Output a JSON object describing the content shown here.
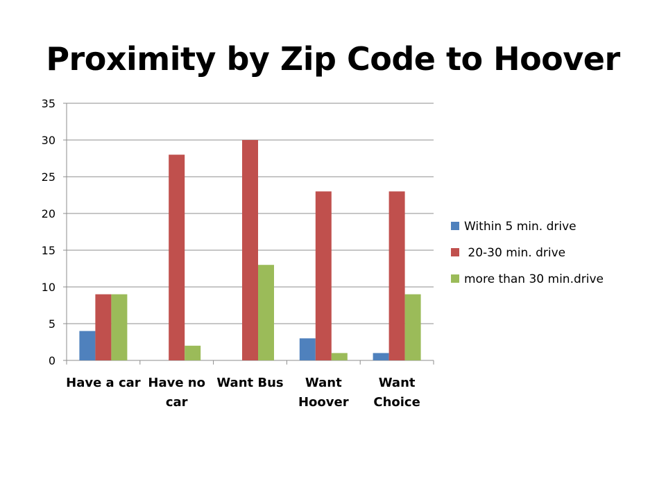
{
  "chart_data": {
    "type": "bar",
    "title": "Proximity by Zip Code to Hoover",
    "categories": [
      [
        "Have a car"
      ],
      [
        "Have no",
        "car"
      ],
      [
        "Want Bus"
      ],
      [
        "Want",
        "Hoover"
      ],
      [
        "Want",
        "Choice"
      ]
    ],
    "series": [
      {
        "name": "Within 5 min. drive",
        "values": [
          4,
          0,
          0,
          3,
          1
        ],
        "color": "#4F81BD"
      },
      {
        "name": " 20-30 min. drive",
        "values": [
          9,
          28,
          30,
          23,
          23
        ],
        "color": "#C0504D"
      },
      {
        "name": "more than 30 min.drive",
        "values": [
          9,
          2,
          13,
          1,
          9
        ],
        "color": "#9BBB59"
      }
    ],
    "ylim": [
      0,
      35
    ],
    "yticks": [
      0,
      5,
      10,
      15,
      20,
      25,
      30,
      35
    ],
    "grid": true,
    "legend_position": "right",
    "xlabel": "",
    "ylabel": ""
  }
}
